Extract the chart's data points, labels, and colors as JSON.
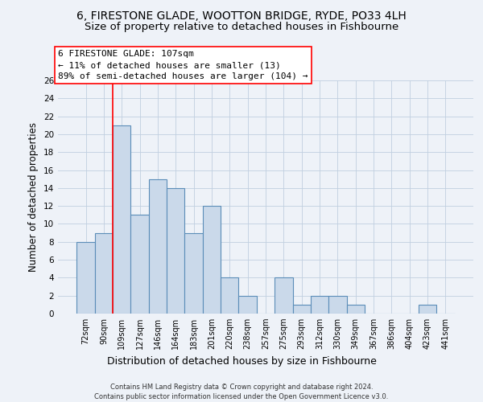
{
  "title1": "6, FIRESTONE GLADE, WOOTTON BRIDGE, RYDE, PO33 4LH",
  "title2": "Size of property relative to detached houses in Fishbourne",
  "xlabel": "Distribution of detached houses by size in Fishbourne",
  "ylabel": "Number of detached properties",
  "categories": [
    "72sqm",
    "90sqm",
    "109sqm",
    "127sqm",
    "146sqm",
    "164sqm",
    "183sqm",
    "201sqm",
    "220sqm",
    "238sqm",
    "257sqm",
    "275sqm",
    "293sqm",
    "312sqm",
    "330sqm",
    "349sqm",
    "367sqm",
    "386sqm",
    "404sqm",
    "423sqm",
    "441sqm"
  ],
  "values": [
    8,
    9,
    21,
    11,
    15,
    14,
    9,
    12,
    4,
    2,
    0,
    4,
    1,
    2,
    2,
    1,
    0,
    0,
    0,
    1,
    0
  ],
  "bar_color": "#cad9ea",
  "bar_edge_color": "#5b8db8",
  "red_line_x": 1.5,
  "annotation_box_text": "6 FIRESTONE GLADE: 107sqm\n← 11% of detached houses are smaller (13)\n89% of semi-detached houses are larger (104) →",
  "ylim": [
    0,
    26
  ],
  "yticks": [
    0,
    2,
    4,
    6,
    8,
    10,
    12,
    14,
    16,
    18,
    20,
    22,
    24,
    26
  ],
  "footnote1": "Contains HM Land Registry data © Crown copyright and database right 2024.",
  "footnote2": "Contains public sector information licensed under the Open Government Licence v3.0.",
  "bg_color": "#eef2f8",
  "plot_bg_color": "#eef2f8",
  "grid_color": "#c0cfe0",
  "title1_fontsize": 10,
  "title2_fontsize": 9.5,
  "tick_fontsize": 7,
  "ylabel_fontsize": 8.5,
  "xlabel_fontsize": 9,
  "annot_fontsize": 8,
  "footnote_fontsize": 6
}
